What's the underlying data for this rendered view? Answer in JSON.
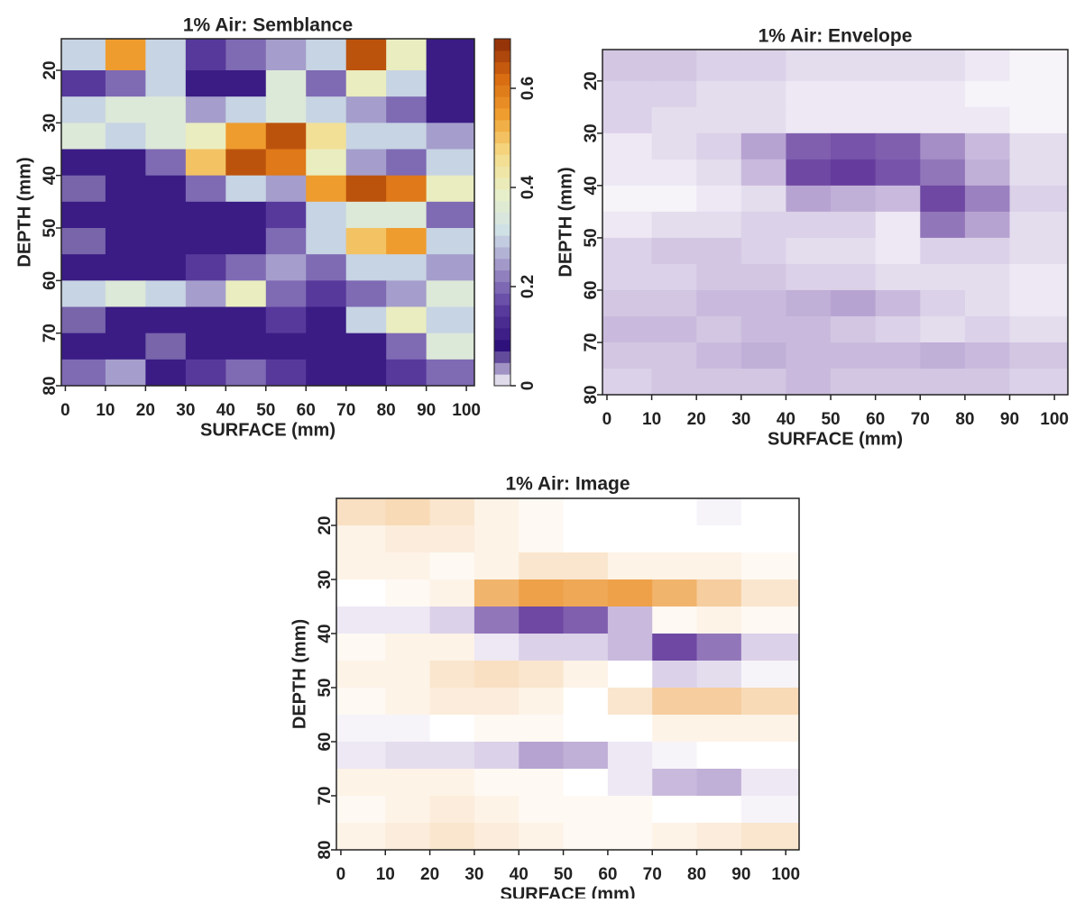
{
  "chart_data": [
    {
      "type": "heatmap",
      "title": "1% Air: Semblance",
      "xlabel": "SURFACE (mm)",
      "ylabel": "DEPTH (mm)",
      "xlim": [
        -1,
        102
      ],
      "ylim": [
        80,
        14
      ],
      "xticks": [
        0,
        10,
        20,
        30,
        40,
        50,
        60,
        70,
        80,
        90,
        100
      ],
      "yticks": [
        20,
        30,
        40,
        50,
        60,
        70,
        80
      ],
      "zlim": [
        0,
        0.7
      ],
      "zticks": [
        0,
        0.2,
        0.4,
        0.6
      ],
      "colorbar": true,
      "colormap": [
        "#ffffff",
        "#2d0f7a",
        "#5a3c9e",
        "#9a8cc4",
        "#cfe0e8",
        "#e8f0c8",
        "#f5dc8a",
        "#f0a030",
        "#d86a10",
        "#8a2a08"
      ],
      "x": [
        5,
        15,
        25,
        35,
        45,
        55,
        65,
        75,
        85,
        95
      ],
      "y": [
        17.5,
        22.5,
        27.5,
        32.5,
        37.5,
        42.5,
        47.5,
        52.5,
        57.5,
        62.5,
        67.5,
        72.5,
        77.5
      ],
      "values": [
        [
          0.3,
          0.55,
          0.3,
          0.15,
          0.2,
          0.25,
          0.3,
          0.65,
          0.4,
          0.1
        ],
        [
          0.15,
          0.2,
          0.3,
          0.1,
          0.1,
          0.35,
          0.2,
          0.4,
          0.3,
          0.1
        ],
        [
          0.3,
          0.35,
          0.35,
          0.25,
          0.3,
          0.35,
          0.3,
          0.25,
          0.2,
          0.1
        ],
        [
          0.35,
          0.3,
          0.35,
          0.4,
          0.55,
          0.65,
          0.45,
          0.3,
          0.3,
          0.25
        ],
        [
          0.1,
          0.1,
          0.2,
          0.5,
          0.65,
          0.6,
          0.4,
          0.25,
          0.2,
          0.3
        ],
        [
          0.05,
          0.1,
          0.1,
          0.2,
          0.3,
          0.25,
          0.55,
          0.65,
          0.6,
          0.4
        ],
        [
          0.1,
          0.1,
          0.1,
          0.1,
          0.1,
          0.15,
          0.3,
          0.35,
          0.35,
          0.2
        ],
        [
          0.05,
          0.1,
          0.1,
          0.1,
          0.1,
          0.2,
          0.3,
          0.5,
          0.55,
          0.3
        ],
        [
          0.1,
          0.1,
          0.1,
          0.15,
          0.2,
          0.25,
          0.2,
          0.3,
          0.3,
          0.25
        ],
        [
          0.3,
          0.35,
          0.3,
          0.25,
          0.4,
          0.2,
          0.15,
          0.2,
          0.25,
          0.35
        ],
        [
          0.05,
          0.1,
          0.1,
          0.1,
          0.1,
          0.15,
          0.1,
          0.3,
          0.4,
          0.3
        ],
        [
          0.1,
          0.1,
          0.05,
          0.1,
          0.1,
          0.1,
          0.1,
          0.1,
          0.2,
          0.35
        ],
        [
          0.2,
          0.25,
          0.1,
          0.15,
          0.2,
          0.15,
          0.1,
          0.1,
          0.15,
          0.2
        ]
      ]
    },
    {
      "type": "heatmap",
      "title": "1% Air: Envelope",
      "xlabel": "SURFACE (mm)",
      "ylabel": "DEPTH (mm)",
      "xlim": [
        -1,
        103
      ],
      "ylim": [
        80,
        14
      ],
      "xticks": [
        0,
        10,
        20,
        30,
        40,
        50,
        60,
        70,
        80,
        90,
        100
      ],
      "yticks": [
        20,
        30,
        40,
        50,
        60,
        70,
        80
      ],
      "zlim": [
        0,
        1
      ],
      "colorbar": false,
      "colormap": [
        "#ffffff",
        "#4a1a8c"
      ],
      "x": [
        5,
        15,
        25,
        35,
        45,
        55,
        65,
        75,
        85,
        95
      ],
      "y": [
        17.5,
        22.5,
        27.5,
        32.5,
        37.5,
        42.5,
        47.5,
        52.5,
        57.5,
        62.5,
        67.5,
        72.5,
        77.5
      ],
      "values": [
        [
          0.25,
          0.25,
          0.2,
          0.2,
          0.15,
          0.15,
          0.15,
          0.15,
          0.1,
          0.05
        ],
        [
          0.2,
          0.2,
          0.15,
          0.15,
          0.1,
          0.1,
          0.1,
          0.1,
          0.05,
          0.05
        ],
        [
          0.2,
          0.15,
          0.15,
          0.15,
          0.1,
          0.1,
          0.1,
          0.1,
          0.1,
          0.05
        ],
        [
          0.1,
          0.15,
          0.2,
          0.4,
          0.7,
          0.75,
          0.7,
          0.5,
          0.3,
          0.15
        ],
        [
          0.1,
          0.1,
          0.15,
          0.3,
          0.8,
          0.85,
          0.75,
          0.6,
          0.35,
          0.15
        ],
        [
          0.05,
          0.05,
          0.1,
          0.15,
          0.4,
          0.35,
          0.3,
          0.8,
          0.55,
          0.2
        ],
        [
          0.1,
          0.15,
          0.15,
          0.2,
          0.2,
          0.2,
          0.1,
          0.6,
          0.4,
          0.15
        ],
        [
          0.2,
          0.25,
          0.25,
          0.2,
          0.15,
          0.15,
          0.1,
          0.2,
          0.2,
          0.15
        ],
        [
          0.2,
          0.2,
          0.25,
          0.25,
          0.2,
          0.2,
          0.15,
          0.15,
          0.15,
          0.1
        ],
        [
          0.25,
          0.25,
          0.3,
          0.3,
          0.35,
          0.4,
          0.3,
          0.2,
          0.15,
          0.1
        ],
        [
          0.3,
          0.3,
          0.25,
          0.3,
          0.3,
          0.25,
          0.2,
          0.15,
          0.2,
          0.15
        ],
        [
          0.25,
          0.25,
          0.3,
          0.35,
          0.3,
          0.3,
          0.3,
          0.35,
          0.3,
          0.25
        ],
        [
          0.2,
          0.25,
          0.25,
          0.25,
          0.3,
          0.25,
          0.25,
          0.25,
          0.25,
          0.2
        ]
      ]
    },
    {
      "type": "heatmap",
      "title": "1% Air: Image",
      "xlabel": "SURFACE (mm)",
      "ylabel": "DEPTH (mm)",
      "xlim": [
        -1,
        103
      ],
      "ylim": [
        80,
        15
      ],
      "xticks": [
        0,
        10,
        20,
        30,
        40,
        50,
        60,
        70,
        80,
        90,
        100
      ],
      "yticks": [
        20,
        30,
        40,
        50,
        60,
        70,
        80
      ],
      "zlim": [
        -1,
        1
      ],
      "colorbar": false,
      "colormap": [
        "#4a1a8c",
        "#ffffff",
        "#e8820c"
      ],
      "x": [
        5,
        15,
        25,
        35,
        45,
        55,
        65,
        75,
        85,
        95
      ],
      "y": [
        17.5,
        22.5,
        27.5,
        32.5,
        37.5,
        42.5,
        47.5,
        52.5,
        57.5,
        62.5,
        67.5,
        72.5,
        77.5
      ],
      "values": [
        [
          0.25,
          0.3,
          0.2,
          0.1,
          0.05,
          0,
          0,
          0,
          -0.05,
          0
        ],
        [
          0.1,
          0.15,
          0.15,
          0.1,
          0.05,
          0,
          0,
          0,
          0,
          0
        ],
        [
          0.1,
          0.1,
          0.05,
          0.1,
          0.2,
          0.2,
          0.1,
          0.1,
          0.1,
          0.05
        ],
        [
          0,
          0.05,
          0.1,
          0.6,
          0.75,
          0.7,
          0.75,
          0.6,
          0.4,
          0.2
        ],
        [
          -0.1,
          -0.1,
          -0.2,
          -0.6,
          -0.8,
          -0.7,
          -0.3,
          0.05,
          0.1,
          0.05
        ],
        [
          0.05,
          0.1,
          0.1,
          -0.1,
          -0.2,
          -0.2,
          -0.3,
          -0.8,
          -0.6,
          -0.2
        ],
        [
          0.1,
          0.1,
          0.2,
          0.25,
          0.2,
          0.1,
          0,
          -0.2,
          -0.15,
          -0.05
        ],
        [
          0.05,
          0.1,
          0.15,
          0.15,
          0.1,
          0,
          0.2,
          0.4,
          0.4,
          0.3
        ],
        [
          -0.05,
          -0.05,
          0,
          0.05,
          0.05,
          0,
          0,
          0.1,
          0.1,
          0.1
        ],
        [
          -0.1,
          -0.15,
          -0.15,
          -0.2,
          -0.4,
          -0.35,
          -0.1,
          -0.05,
          0,
          0
        ],
        [
          0.1,
          0.1,
          0.1,
          0.05,
          0.05,
          0,
          -0.1,
          -0.3,
          -0.35,
          -0.1
        ],
        [
          0.05,
          0.1,
          0.15,
          0.1,
          0.05,
          0.05,
          0.05,
          0,
          0,
          -0.05
        ],
        [
          0.1,
          0.15,
          0.2,
          0.15,
          0.1,
          0.05,
          0.05,
          0.1,
          0.15,
          0.2
        ]
      ]
    }
  ]
}
